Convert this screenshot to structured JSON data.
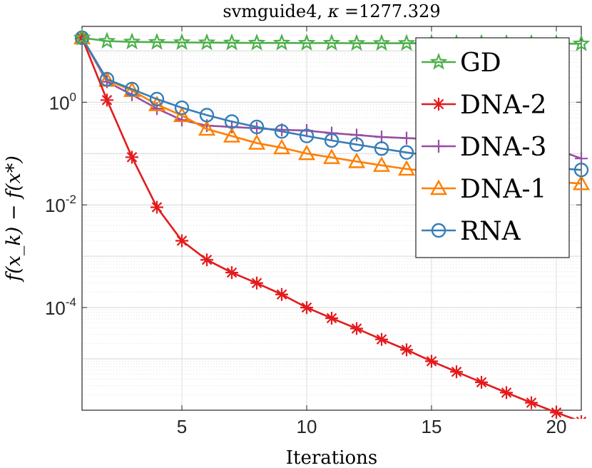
{
  "chart_data": {
    "type": "line",
    "title": "svmguide4, κ =1277.329",
    "xlabel": "Iterations",
    "ylabel": "f(x_k) − f(x*)",
    "yscale": "log",
    "xlim": [
      1,
      21
    ],
    "ylim": [
      1e-06,
      30
    ],
    "xticks": [
      5,
      10,
      15,
      20
    ],
    "yticks": [
      {
        "value": 1,
        "base": "10",
        "exp": "0"
      },
      {
        "value": 0.01,
        "base": "10",
        "exp": "-2"
      },
      {
        "value": 0.0001,
        "base": "10",
        "exp": "-4"
      }
    ],
    "grid": true,
    "legend_position": "top-right",
    "x": [
      1,
      2,
      3,
      4,
      5,
      6,
      7,
      8,
      9,
      10,
      11,
      12,
      13,
      14,
      15,
      16,
      17,
      18,
      19,
      20,
      21
    ],
    "series": [
      {
        "name": "GD",
        "color": "#4daf4a",
        "marker": "star",
        "values": [
          18,
          15.5,
          15,
          14.8,
          14.6,
          14.5,
          14.4,
          14.3,
          14.3,
          14.2,
          14.2,
          14.1,
          14.1,
          14.1,
          14.0,
          14.0,
          14.0,
          13.9,
          13.9,
          13.9,
          13.8
        ]
      },
      {
        "name": "DNA-2",
        "color": "#e41a1c",
        "marker": "asterisk",
        "values": [
          18,
          1.1,
          0.085,
          0.009,
          0.002,
          0.00085,
          0.00048,
          0.0003,
          0.00018,
          0.0001,
          6.2e-05,
          3.9e-05,
          2.4e-05,
          1.5e-05,
          9e-06,
          5.6e-06,
          3.5e-06,
          2.2e-06,
          1.4e-06,
          9e-07,
          6e-07
        ]
      },
      {
        "name": "DNA-3",
        "color": "#984ea3",
        "marker": "plus",
        "values": [
          18,
          2.5,
          1.4,
          0.75,
          0.45,
          0.35,
          0.33,
          0.31,
          0.29,
          0.28,
          0.25,
          0.23,
          0.21,
          0.2,
          0.19,
          0.18,
          0.17,
          0.16,
          0.15,
          0.12,
          0.08
        ]
      },
      {
        "name": "DNA-1",
        "color": "#ff7f00",
        "marker": "triangle",
        "values": [
          18,
          2.7,
          1.7,
          0.9,
          0.55,
          0.3,
          0.22,
          0.16,
          0.13,
          0.1,
          0.084,
          0.07,
          0.059,
          0.05,
          0.045,
          0.04,
          0.036,
          0.033,
          0.03,
          0.028,
          0.026
        ]
      },
      {
        "name": "RNA",
        "color": "#377eb8",
        "marker": "circle",
        "values": [
          18,
          2.8,
          1.8,
          1.15,
          0.78,
          0.56,
          0.42,
          0.33,
          0.27,
          0.22,
          0.18,
          0.15,
          0.125,
          0.105,
          0.09,
          0.08,
          0.07,
          0.062,
          0.056,
          0.052,
          0.048
        ]
      }
    ]
  }
}
